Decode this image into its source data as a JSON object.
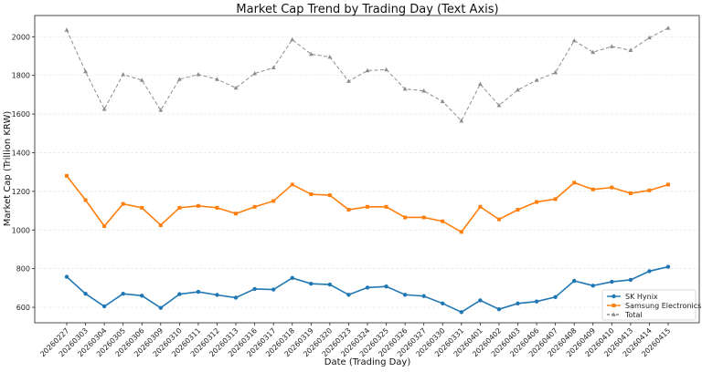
{
  "chart_data": {
    "type": "line",
    "title": "Market Cap Trend by Trading Day (Text Axis)",
    "xlabel": "Date (Trading Day)",
    "ylabel": "Market Cap (Trillion KRW)",
    "ylim": [
      520,
      2110
    ],
    "yticks": [
      600,
      800,
      1000,
      1200,
      1400,
      1600,
      1800,
      2000
    ],
    "grid": "horizontal",
    "legend_position": "lower-right",
    "categories": [
      "20260227",
      "20260303",
      "20260304",
      "20260305",
      "20260306",
      "20260309",
      "20260310",
      "20260311",
      "20260312",
      "20260313",
      "20260316",
      "20260317",
      "20260318",
      "20260319",
      "20260320",
      "20260323",
      "20260324",
      "20260325",
      "20260326",
      "20260327",
      "20260330",
      "20260331",
      "20260401",
      "20260402",
      "20260403",
      "20260406",
      "20260407",
      "20260408",
      "20260409",
      "20260410",
      "20260413",
      "20260414",
      "20260415"
    ],
    "series": [
      {
        "name": "SK Hynix",
        "color": "#1f77b4",
        "marker": "circle",
        "style": "solid",
        "values": [
          758,
          670,
          605,
          670,
          660,
          597,
          668,
          680,
          664,
          650,
          695,
          692,
          752,
          722,
          718,
          665,
          702,
          708,
          665,
          658,
          620,
          575,
          636,
          590,
          620,
          630,
          653,
          737,
          712,
          732,
          742,
          787,
          810
        ]
      },
      {
        "name": "Samsung Electronics",
        "color": "#ff7f0e",
        "marker": "square",
        "style": "solid",
        "values": [
          1280,
          1155,
          1020,
          1135,
          1115,
          1025,
          1115,
          1125,
          1115,
          1085,
          1120,
          1150,
          1235,
          1185,
          1180,
          1105,
          1120,
          1120,
          1065,
          1065,
          1045,
          990,
          1120,
          1055,
          1105,
          1145,
          1160,
          1245,
          1210,
          1220,
          1190,
          1205,
          1235
        ]
      },
      {
        "name": "Total",
        "color": "#8c8c8c",
        "marker": "triangle",
        "style": "dashed",
        "values": [
          2035,
          1820,
          1625,
          1805,
          1775,
          1620,
          1780,
          1805,
          1780,
          1735,
          1810,
          1840,
          1985,
          1910,
          1895,
          1770,
          1825,
          1830,
          1730,
          1720,
          1665,
          1565,
          1755,
          1645,
          1725,
          1775,
          1815,
          1980,
          1920,
          1950,
          1930,
          1995,
          2045
        ]
      }
    ]
  }
}
